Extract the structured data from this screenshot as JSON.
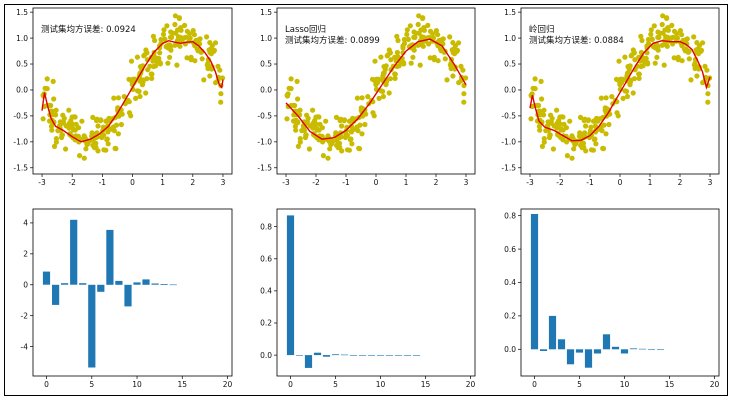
{
  "chart_data": [
    {
      "type": "scatter",
      "annotation_lines": [
        "测试集均方误差: 0.0924"
      ],
      "xlim": [
        -3.3,
        3.3
      ],
      "ylim": [
        -1.62,
        1.58
      ],
      "xticks": [
        -3,
        -2,
        -1,
        0,
        1,
        2,
        3
      ],
      "yticks": [
        -1.5,
        -1.0,
        -0.5,
        0.0,
        0.5,
        1.0,
        1.5
      ],
      "tick_labels_x": [
        "-3",
        "-2",
        "-1",
        "0",
        "1",
        "2",
        "3"
      ],
      "tick_labels_y": [
        "-1.5",
        "-1.0",
        "-0.5",
        "0.0",
        "0.5",
        "1.0",
        "1.5"
      ],
      "scatter_color": "#c8bb00",
      "line_color": "#e00000",
      "curve": {
        "x": [
          -3.0,
          -2.92,
          -2.82,
          -2.7,
          -2.55,
          -2.3,
          -2.0,
          -1.7,
          -1.4,
          -1.1,
          -0.8,
          -0.5,
          -0.2,
          0.1,
          0.4,
          0.7,
          1.0,
          1.2,
          1.4,
          1.6,
          1.8,
          2.0,
          2.2,
          2.4,
          2.6,
          2.75,
          2.88,
          2.96,
          3.0
        ],
        "y": [
          -0.4,
          -0.05,
          -0.3,
          -0.55,
          -0.7,
          -0.78,
          -0.9,
          -1.0,
          -0.95,
          -0.85,
          -0.7,
          -0.45,
          -0.15,
          0.15,
          0.45,
          0.72,
          0.9,
          0.95,
          0.92,
          0.9,
          0.92,
          0.93,
          0.85,
          0.72,
          0.55,
          0.35,
          0.1,
          0.05,
          0.2
        ]
      }
    },
    {
      "type": "scatter",
      "annotation_lines": [
        "Lasso回归",
        "测试集均方误差: 0.0899"
      ],
      "xlim": [
        -3.3,
        3.3
      ],
      "ylim": [
        -1.62,
        1.58
      ],
      "xticks": [
        -3,
        -2,
        -1,
        0,
        1,
        2,
        3
      ],
      "yticks": [
        -1.5,
        -1.0,
        -0.5,
        0.0,
        0.5,
        1.0,
        1.5
      ],
      "tick_labels_x": [
        "-3",
        "-2",
        "-1",
        "0",
        "1",
        "2",
        "3"
      ],
      "tick_labels_y": [
        "-1.5",
        "-1.0",
        "-0.5",
        "0.0",
        "0.5",
        "1.0",
        "1.5"
      ],
      "scatter_color": "#c8bb00",
      "line_color": "#e00000",
      "curve": {
        "x": [
          -3.0,
          -2.6,
          -2.2,
          -1.8,
          -1.4,
          -1.0,
          -0.6,
          -0.2,
          0.2,
          0.6,
          1.0,
          1.4,
          1.8,
          2.2,
          2.6,
          3.0
        ],
        "y": [
          -0.25,
          -0.5,
          -0.8,
          -0.95,
          -0.92,
          -0.78,
          -0.55,
          -0.25,
          0.1,
          0.45,
          0.75,
          0.93,
          0.98,
          0.85,
          0.5,
          0.1
        ]
      }
    },
    {
      "type": "scatter",
      "annotation_lines": [
        "岭回归",
        "测试集均方误差: 0.0884"
      ],
      "xlim": [
        -3.3,
        3.3
      ],
      "ylim": [
        -1.62,
        1.58
      ],
      "xticks": [
        -3,
        -2,
        -1,
        0,
        1,
        2,
        3
      ],
      "yticks": [
        -1.5,
        -1.0,
        -0.5,
        0.0,
        0.5,
        1.0,
        1.5
      ],
      "tick_labels_x": [
        "-3",
        "-2",
        "-1",
        "0",
        "1",
        "2",
        "3"
      ],
      "tick_labels_y": [
        "-1.5",
        "-1.0",
        "-0.5",
        "0.0",
        "0.5",
        "1.0",
        "1.5"
      ],
      "scatter_color": "#c8bb00",
      "line_color": "#e00000",
      "curve": {
        "x": [
          -3.0,
          -2.92,
          -2.82,
          -2.7,
          -2.5,
          -2.2,
          -1.9,
          -1.6,
          -1.3,
          -1.0,
          -0.7,
          -0.4,
          -0.1,
          0.2,
          0.5,
          0.8,
          1.1,
          1.4,
          1.7,
          2.0,
          2.2,
          2.4,
          2.6,
          2.75,
          2.88,
          3.0
        ],
        "y": [
          -0.35,
          -0.1,
          -0.35,
          -0.6,
          -0.72,
          -0.78,
          -0.88,
          -0.98,
          -0.97,
          -0.88,
          -0.7,
          -0.45,
          -0.15,
          0.15,
          0.45,
          0.72,
          0.9,
          0.95,
          0.93,
          0.93,
          0.88,
          0.78,
          0.55,
          0.35,
          0.05,
          0.25
        ]
      }
    },
    {
      "type": "bar",
      "x": [
        0,
        1,
        2,
        3,
        4,
        5,
        6,
        7,
        8,
        9,
        10,
        11,
        12,
        13,
        14
      ],
      "values": [
        0.85,
        -1.3,
        0.1,
        4.2,
        0.1,
        -5.35,
        -0.45,
        3.55,
        0.25,
        -1.4,
        0.15,
        0.35,
        0.08,
        0.05,
        0.02
      ],
      "xlim": [
        -1.5,
        20.5
      ],
      "ylim": [
        -5.9,
        4.9
      ],
      "xticks": [
        0,
        5,
        10,
        15,
        20
      ],
      "yticks": [
        -4,
        -2,
        0,
        2,
        4
      ],
      "tick_labels_x": [
        "0",
        "5",
        "10",
        "15",
        "20"
      ],
      "tick_labels_y": [
        "-4",
        "-2",
        "0",
        "2",
        "4"
      ],
      "bar_color": "#1f77b4"
    },
    {
      "type": "bar",
      "x": [
        0,
        1,
        2,
        3,
        4,
        5,
        6,
        7,
        8,
        9,
        10,
        11,
        12,
        13,
        14
      ],
      "values": [
        0.87,
        0.0,
        -0.08,
        0.015,
        -0.01,
        0.005,
        0.003,
        0.0,
        0.0,
        0.0,
        0.0,
        0.0,
        0.0,
        0.0,
        0.0
      ],
      "xlim": [
        -1.5,
        20.5
      ],
      "ylim": [
        -0.13,
        0.91
      ],
      "xticks": [
        0,
        5,
        10,
        15,
        20
      ],
      "yticks": [
        0.0,
        0.2,
        0.4,
        0.6,
        0.8
      ],
      "tick_labels_x": [
        "0",
        "5",
        "10",
        "15",
        "20"
      ],
      "tick_labels_y": [
        "0.0",
        "0.2",
        "0.4",
        "0.6",
        "0.8"
      ],
      "bar_color": "#1f77b4"
    },
    {
      "type": "bar",
      "x": [
        0,
        1,
        2,
        3,
        4,
        5,
        6,
        7,
        8,
        9,
        10,
        11,
        12,
        13,
        14
      ],
      "values": [
        0.81,
        -0.01,
        0.2,
        0.06,
        -0.09,
        -0.02,
        -0.11,
        -0.025,
        0.09,
        0.015,
        -0.025,
        0.005,
        0.003,
        0.0,
        0.0
      ],
      "xlim": [
        -1.5,
        20.5
      ],
      "ylim": [
        -0.16,
        0.84
      ],
      "xticks": [
        0,
        5,
        10,
        15,
        20
      ],
      "yticks": [
        0.0,
        0.2,
        0.4,
        0.6,
        0.8
      ],
      "tick_labels_x": [
        "0",
        "5",
        "10",
        "15",
        "20"
      ],
      "tick_labels_y": [
        "0.0",
        "0.2",
        "0.4",
        "0.6",
        "0.8"
      ],
      "bar_color": "#1f77b4"
    }
  ]
}
